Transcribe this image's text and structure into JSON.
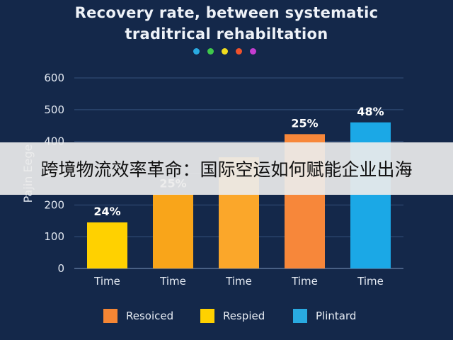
{
  "chart_data": {
    "type": "bar",
    "title": [
      "Recovery rate, between systematic",
      "traditrical rehabiltation"
    ],
    "ylabel": "Pajin Eege",
    "ylim": [
      0,
      600
    ],
    "yticks": [
      0,
      100,
      200,
      300,
      400,
      500,
      600
    ],
    "categories": [
      "Time",
      "Time",
      "Time",
      "Time",
      "Time"
    ],
    "values": [
      145,
      233,
      350,
      423,
      460
    ],
    "data_labels": [
      "24%",
      "25%",
      "",
      "25%",
      "48%"
    ],
    "bar_colors": [
      "#ffd100",
      "#f9a51a",
      "#fba72a",
      "#f7873a",
      "#1ba8e6"
    ],
    "grid": true,
    "legend": {
      "placement": "bottom",
      "entries": [
        {
          "label": "Resoiced",
          "color": "#f58634"
        },
        {
          "label": "Respied",
          "color": "#ffd100"
        },
        {
          "label": "Plintard",
          "color": "#29aae1"
        }
      ]
    },
    "decor_dots": [
      "#29aae1",
      "#3fc84b",
      "#f0dc1e",
      "#f0522c",
      "#c43dd1"
    ]
  },
  "overlay": {
    "text": "跨境物流效率革命：国际空运如何赋能企业出海"
  }
}
